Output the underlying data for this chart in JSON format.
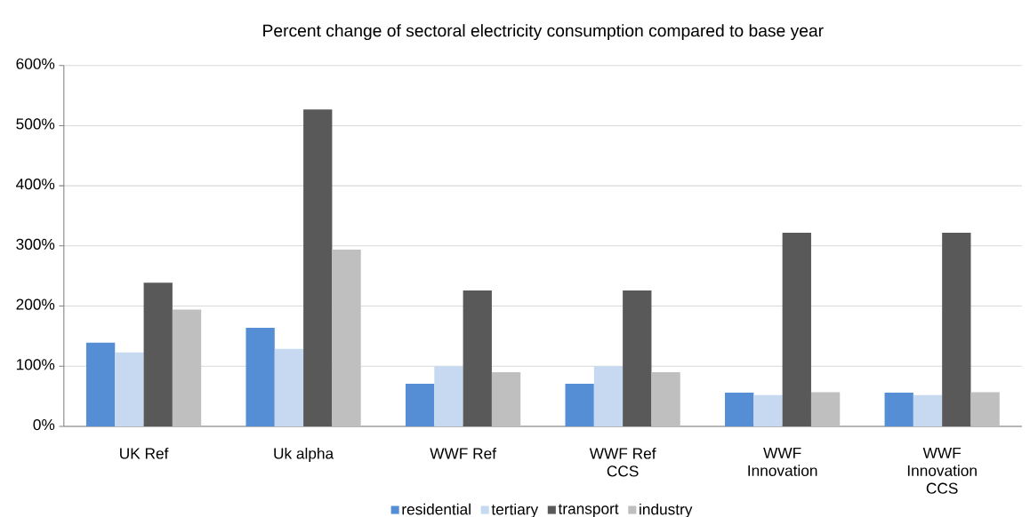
{
  "chart_data": {
    "type": "bar",
    "title": "Percent change of sectoral electricity consumption compared to base year",
    "categories": [
      "UK Ref",
      "Uk alpha",
      "WWF Ref",
      "WWF Ref CCS",
      "WWF Innovation",
      "WWF Innovation CCS"
    ],
    "series": [
      {
        "name": "residential",
        "color": "#558ed5",
        "values": [
          139,
          164,
          71,
          71,
          56,
          56
        ]
      },
      {
        "name": "tertiary",
        "color": "#c6d9f1",
        "values": [
          123,
          129,
          100,
          100,
          52,
          52
        ]
      },
      {
        "name": "transport",
        "color": "#595959",
        "values": [
          239,
          527,
          226,
          226,
          322,
          322
        ]
      },
      {
        "name": "industry",
        "color": "#bfbfbf",
        "values": [
          194,
          294,
          90,
          90,
          57,
          57
        ]
      }
    ],
    "ylim": [
      0,
      600
    ],
    "yticks": [
      {
        "value": 0,
        "label": "0%"
      },
      {
        "value": 100,
        "label": "100%"
      },
      {
        "value": 200,
        "label": "200%"
      },
      {
        "value": 300,
        "label": "300%"
      },
      {
        "value": 400,
        "label": "400%"
      },
      {
        "value": 500,
        "label": "500%"
      },
      {
        "value": 600,
        "label": "600%"
      }
    ],
    "grid": "y",
    "legend": "bottom"
  }
}
